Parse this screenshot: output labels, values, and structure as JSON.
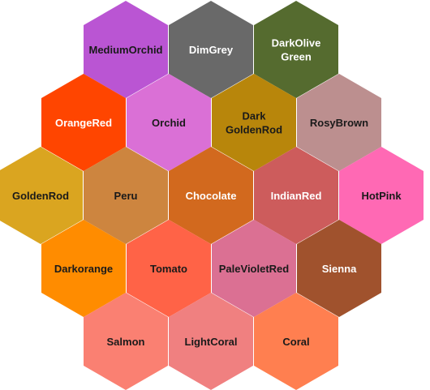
{
  "palette": {
    "rows": [
      [
        {
          "label": [
            "MediumOrchid"
          ],
          "color": "#BA55D3",
          "text_color": "#1a1a1a"
        },
        {
          "label": [
            "DimGrey"
          ],
          "color": "#696969",
          "text_color": "#ffffff"
        },
        {
          "label": [
            "DarkOlive",
            "Green"
          ],
          "color": "#556B2F",
          "text_color": "#ffffff"
        }
      ],
      [
        {
          "label": [
            "OrangeRed"
          ],
          "color": "#FF4500",
          "text_color": "#ffffff"
        },
        {
          "label": [
            "Orchid"
          ],
          "color": "#DA70D6",
          "text_color": "#1a1a1a"
        },
        {
          "label": [
            "Dark",
            "GoldenRod"
          ],
          "color": "#B8860B",
          "text_color": "#1a1a1a"
        },
        {
          "label": [
            "RosyBrown"
          ],
          "color": "#BC8F8F",
          "text_color": "#1a1a1a"
        }
      ],
      [
        {
          "label": [
            "GoldenRod"
          ],
          "color": "#DAA520",
          "text_color": "#1a1a1a"
        },
        {
          "label": [
            "Peru"
          ],
          "color": "#CD853F",
          "text_color": "#1a1a1a"
        },
        {
          "label": [
            "Chocolate"
          ],
          "color": "#D2691E",
          "text_color": "#ffffff"
        },
        {
          "label": [
            "IndianRed"
          ],
          "color": "#CD5C5C",
          "text_color": "#ffffff"
        },
        {
          "label": [
            "HotPink"
          ],
          "color": "#FF69B4",
          "text_color": "#1a1a1a"
        }
      ],
      [
        {
          "label": [
            "Darkorange"
          ],
          "color": "#FF8C00",
          "text_color": "#1a1a1a"
        },
        {
          "label": [
            "Tomato"
          ],
          "color": "#FF6347",
          "text_color": "#1a1a1a"
        },
        {
          "label": [
            "PaleVioletRed"
          ],
          "color": "#DB7093",
          "text_color": "#1a1a1a"
        },
        {
          "label": [
            "Sienna"
          ],
          "color": "#A0522D",
          "text_color": "#ffffff"
        }
      ],
      [
        {
          "label": [
            "Salmon"
          ],
          "color": "#FA8072",
          "text_color": "#1a1a1a"
        },
        {
          "label": [
            "LightCoral"
          ],
          "color": "#F08080",
          "text_color": "#1a1a1a"
        },
        {
          "label": [
            "Coral"
          ],
          "color": "#FF7F50",
          "text_color": "#1a1a1a"
        }
      ]
    ]
  }
}
